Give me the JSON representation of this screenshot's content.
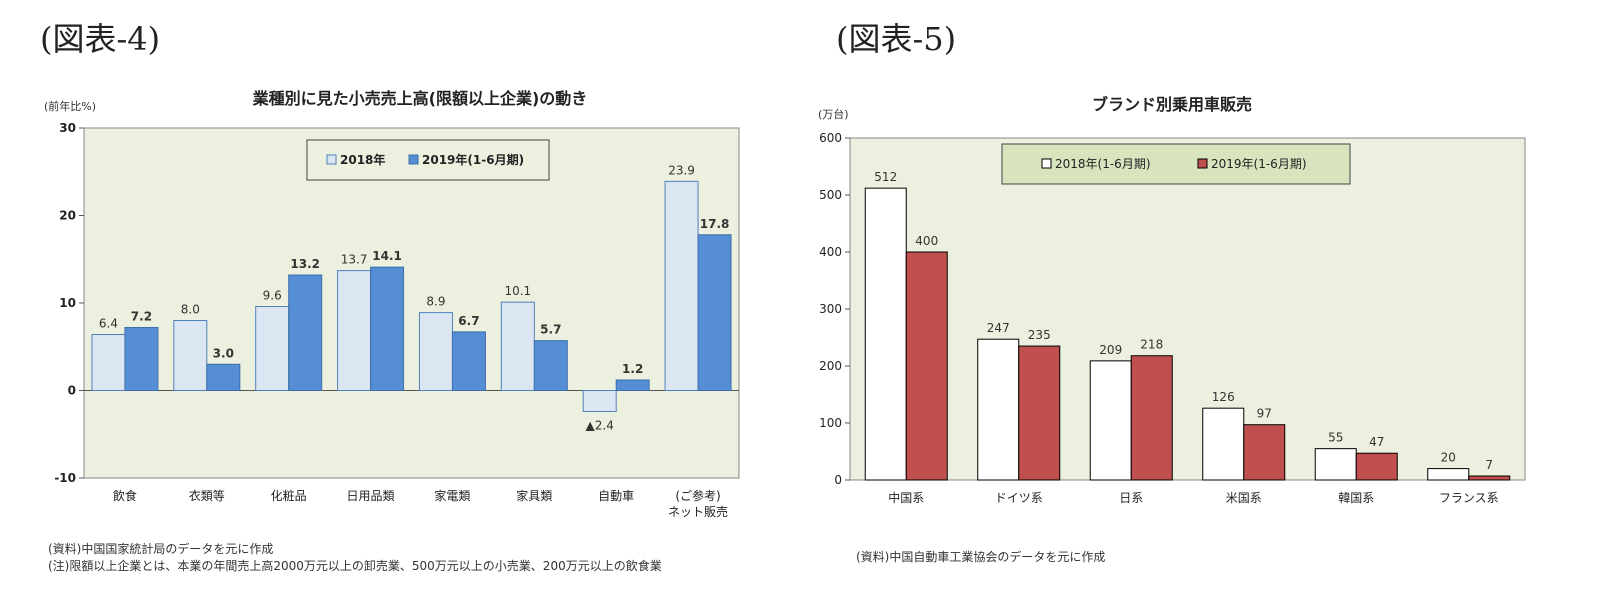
{
  "figures": {
    "left_label": "(図表-4)",
    "right_label": "(図表-5)"
  },
  "chart_data": [
    {
      "type": "bar",
      "title": "業種別に見た小売売上高(限額以上企業)の動き",
      "ylabel": "(前年比%)",
      "xlabel": "",
      "ylim": [
        -10,
        30
      ],
      "yticks": [
        -10,
        0,
        10,
        20,
        30
      ],
      "grid": false,
      "legend_position": "top-center",
      "categories": [
        "飲食",
        "衣類等",
        "化粧品",
        "日用品類",
        "家電類",
        "家具類",
        "自動車",
        "(ご参考)\nネット販売"
      ],
      "series": [
        {
          "name": "2018年",
          "values": [
            6.4,
            8.0,
            9.6,
            13.7,
            8.9,
            10.1,
            -2.4,
            23.9
          ],
          "color": "#dce6f2",
          "stroke": "#4f81bd"
        },
        {
          "name": "2019年(1-6月期)",
          "values": [
            7.2,
            3.0,
            13.2,
            14.1,
            6.7,
            5.7,
            1.2,
            17.8
          ],
          "color": "#558ed5",
          "stroke": "#3f6fa8"
        }
      ],
      "data_labels": [
        [
          "6.4",
          "8.0",
          "9.6",
          "13.7",
          "8.9",
          "10.1",
          "▲2.4",
          "23.9"
        ],
        [
          "7.2",
          "3.0",
          "13.2",
          "14.1",
          "6.7",
          "5.7",
          "1.2",
          "17.8"
        ]
      ],
      "plot_bg": "#ebf1de",
      "notes": [
        "(資料)中国国家統計局のデータを元に作成",
        "(注)限額以上企業とは、本業の年間売上高2000万元以上の卸売業、500万元以上の小売業、200万元以上の飲食業"
      ]
    },
    {
      "type": "bar",
      "title": "ブランド別乗用車販売",
      "ylabel": "(万台)",
      "xlabel": "",
      "ylim": [
        0,
        600
      ],
      "yticks": [
        0,
        100,
        200,
        300,
        400,
        500,
        600
      ],
      "grid": false,
      "legend_position": "top-center",
      "categories": [
        "中国系",
        "ドイツ系",
        "日系",
        "米国系",
        "韓国系",
        "フランス系"
      ],
      "series": [
        {
          "name": "2018年(1-6月期)",
          "values": [
            512,
            247,
            209,
            126,
            55,
            20
          ],
          "color": "#ffffff",
          "stroke": "#000000"
        },
        {
          "name": "2019年(1-6月期)",
          "values": [
            400,
            235,
            218,
            97,
            47,
            7
          ],
          "color": "#c0504d",
          "stroke": "#000000"
        }
      ],
      "data_labels": [
        [
          "512",
          "247",
          "209",
          "126",
          "55",
          "20"
        ],
        [
          "400",
          "235",
          "218",
          "97",
          "47",
          "7"
        ]
      ],
      "plot_bg": "#ebf1de",
      "notes": [
        "(資料)中国自動車工業協会のデータを元に作成"
      ]
    }
  ]
}
